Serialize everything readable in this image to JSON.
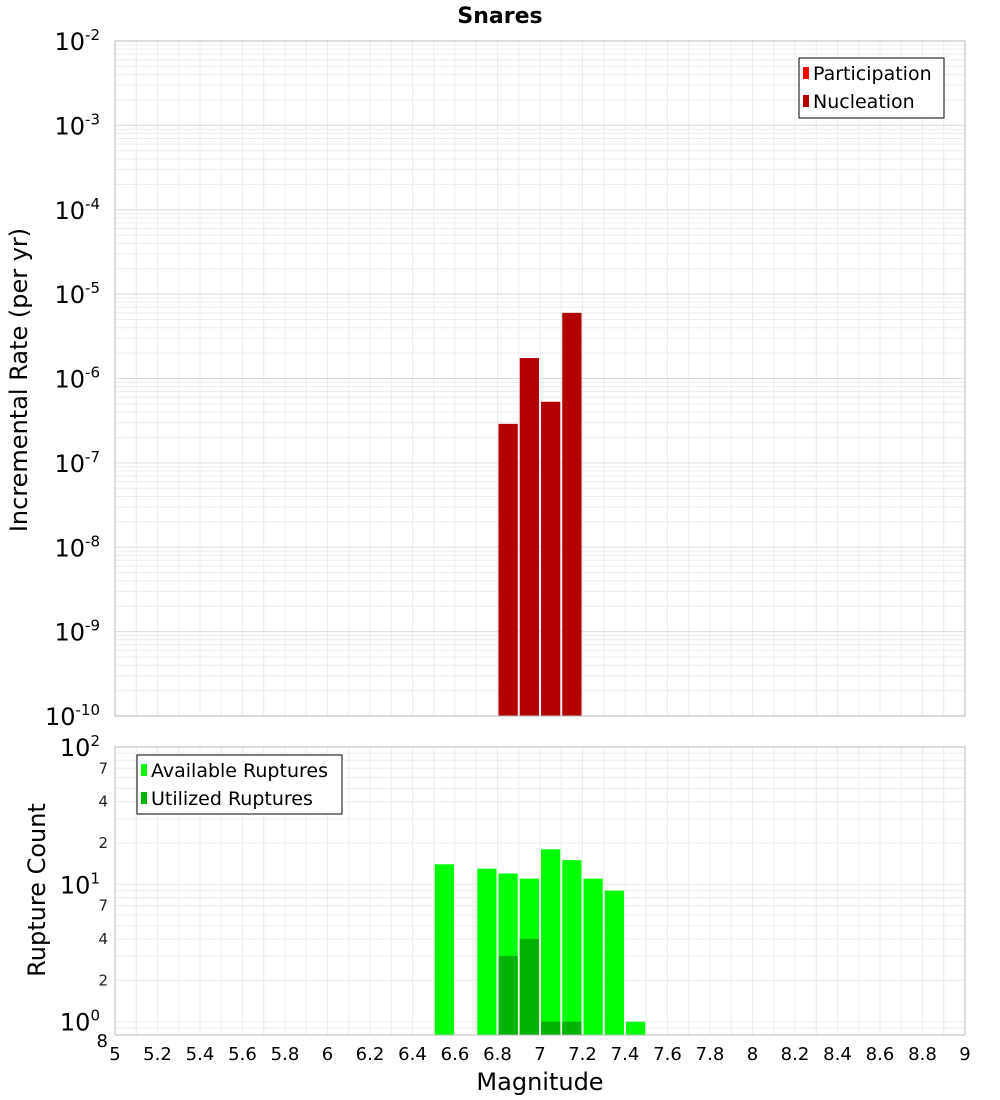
{
  "chart_data": [
    {
      "type": "bar",
      "title": "Snares",
      "xlabel": "",
      "ylabel": "Incremental Rate (per yr)",
      "yscale": "log",
      "ylim": [
        1e-10,
        0.01
      ],
      "xlim": [
        5,
        9
      ],
      "bin_width": 0.1,
      "y_tick_labels": [
        {
          "base": "10",
          "exp": "-10"
        },
        {
          "base": "10",
          "exp": "-9"
        },
        {
          "base": "10",
          "exp": "-8"
        },
        {
          "base": "10",
          "exp": "-7"
        },
        {
          "base": "10",
          "exp": "-6"
        },
        {
          "base": "10",
          "exp": "-5"
        },
        {
          "base": "10",
          "exp": "-4"
        },
        {
          "base": "10",
          "exp": "-3"
        },
        {
          "base": "10",
          "exp": "-2"
        }
      ],
      "legend": {
        "position": "top-right",
        "entries": [
          "Participation",
          "Nucleation"
        ]
      },
      "series": [
        {
          "name": "Participation",
          "color": "#ff0000",
          "x": [],
          "values": []
        },
        {
          "name": "Nucleation",
          "color": "#b30000",
          "x": [
            6.85,
            6.95,
            7.05,
            7.15
          ],
          "values": [
            2.9e-07,
            1.75e-06,
            5.3e-07,
            6e-06
          ]
        }
      ]
    },
    {
      "type": "bar",
      "title": "",
      "xlabel": "Magnitude",
      "ylabel": "Rupture Count",
      "yscale": "log",
      "ylim": [
        0.8,
        100
      ],
      "xlim": [
        5,
        9
      ],
      "bin_width": 0.1,
      "x_tick_labels": [
        "5",
        "5.2",
        "5.4",
        "5.6",
        "5.8",
        "6",
        "6.2",
        "6.4",
        "6.6",
        "6.8",
        "7",
        "7.2",
        "7.4",
        "7.6",
        "7.8",
        "8",
        "8.2",
        "8.4",
        "8.6",
        "8.8",
        "9"
      ],
      "y_major_ticks": [
        {
          "value": 1,
          "base": "10",
          "exp": "0"
        },
        {
          "value": 10,
          "base": "10",
          "exp": "1"
        },
        {
          "value": 100,
          "base": "10",
          "exp": "2"
        }
      ],
      "y_minor_ticks": [
        {
          "value": 0.8,
          "label": "8"
        },
        {
          "value": 2,
          "label": "2"
        },
        {
          "value": 4,
          "label": "4"
        },
        {
          "value": 7,
          "label": "7"
        },
        {
          "value": 20,
          "label": "2"
        },
        {
          "value": 40,
          "label": "4"
        },
        {
          "value": 70,
          "label": "7"
        }
      ],
      "legend": {
        "position": "top-left",
        "entries": [
          "Available Ruptures",
          "Utilized Ruptures"
        ]
      },
      "series": [
        {
          "name": "Available Ruptures",
          "color": "#00ff00",
          "x": [
            6.55,
            6.75,
            6.85,
            6.95,
            7.05,
            7.15,
            7.25,
            7.35,
            7.45
          ],
          "values": [
            14,
            13,
            12,
            11,
            18,
            15,
            11,
            9,
            1
          ]
        },
        {
          "name": "Utilized Ruptures",
          "color": "#00b300",
          "x": [
            6.85,
            6.95,
            7.05,
            7.15
          ],
          "values": [
            3,
            4,
            1,
            1
          ]
        }
      ]
    }
  ]
}
